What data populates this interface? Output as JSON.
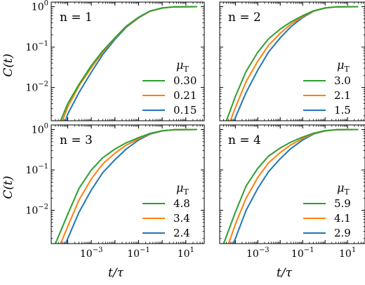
{
  "figure": {
    "ylabel": "C(t)",
    "xlabel": "t/τ"
  },
  "chart_data": [
    {
      "type": "line",
      "panel_label": "n = 1",
      "xscale": "log",
      "yscale": "log",
      "xlim": [
        2e-05,
        60
      ],
      "ylim": [
        0.0015,
        1.3
      ],
      "x_ticks": [
        "10^-3",
        "10^-1",
        "10^1"
      ],
      "y_ticks": [
        "10^0",
        "10^-1",
        "10^-2"
      ],
      "legend_title": "μT",
      "legend_position": "lower-right",
      "series": [
        {
          "name": "0.30",
          "color": "#2ca02c",
          "values": [
            [
              5e-05,
              0.0015
            ],
            [
              0.0001,
              0.004
            ],
            [
              0.0003,
              0.012
            ],
            [
              0.001,
              0.035
            ],
            [
              0.003,
              0.08
            ],
            [
              0.01,
              0.17
            ],
            [
              0.03,
              0.33
            ],
            [
              0.1,
              0.55
            ],
            [
              0.3,
              0.78
            ],
            [
              1,
              0.93
            ],
            [
              3,
              0.99
            ],
            [
              30,
              1.0
            ]
          ]
        },
        {
          "name": "0.21",
          "color": "#ff7f0e",
          "values": [
            [
              6e-05,
              0.0015
            ],
            [
              0.0001,
              0.0033
            ],
            [
              0.0003,
              0.011
            ],
            [
              0.001,
              0.031
            ],
            [
              0.003,
              0.075
            ],
            [
              0.01,
              0.165
            ],
            [
              0.03,
              0.32
            ],
            [
              0.1,
              0.54
            ],
            [
              0.3,
              0.77
            ],
            [
              1,
              0.93
            ],
            [
              3,
              0.99
            ],
            [
              30,
              1.0
            ]
          ]
        },
        {
          "name": "0.15",
          "color": "#1f77b4",
          "values": [
            [
              8e-05,
              0.0015
            ],
            [
              0.0001,
              0.0022
            ],
            [
              0.0003,
              0.0075
            ],
            [
              0.001,
              0.024
            ],
            [
              0.003,
              0.065
            ],
            [
              0.01,
              0.155
            ],
            [
              0.03,
              0.31
            ],
            [
              0.1,
              0.53
            ],
            [
              0.3,
              0.77
            ],
            [
              1,
              0.93
            ],
            [
              3,
              0.99
            ],
            [
              30,
              1.0
            ]
          ]
        }
      ]
    },
    {
      "type": "line",
      "panel_label": "n = 2",
      "xscale": "log",
      "yscale": "log",
      "xlim": [
        2e-05,
        60
      ],
      "ylim": [
        0.0015,
        1.3
      ],
      "x_ticks": [
        "10^-3",
        "10^-1",
        "10^1"
      ],
      "y_ticks": [
        "10^0",
        "10^-1",
        "10^-2"
      ],
      "legend_title": "μT",
      "legend_position": "lower-right",
      "series": [
        {
          "name": "3.0",
          "color": "#2ca02c",
          "values": [
            [
              4e-05,
              0.0015
            ],
            [
              0.0001,
              0.006
            ],
            [
              0.0003,
              0.025
            ],
            [
              0.001,
              0.075
            ],
            [
              0.003,
              0.16
            ],
            [
              0.01,
              0.28
            ],
            [
              0.03,
              0.42
            ],
            [
              0.1,
              0.6
            ],
            [
              0.3,
              0.79
            ],
            [
              1,
              0.93
            ],
            [
              3,
              0.99
            ],
            [
              30,
              1.0
            ]
          ]
        },
        {
          "name": "2.1",
          "color": "#ff7f0e",
          "values": [
            [
              6e-05,
              0.0015
            ],
            [
              0.0001,
              0.0032
            ],
            [
              0.0003,
              0.014
            ],
            [
              0.001,
              0.045
            ],
            [
              0.003,
              0.11
            ],
            [
              0.01,
              0.22
            ],
            [
              0.03,
              0.37
            ],
            [
              0.1,
              0.57
            ],
            [
              0.3,
              0.78
            ],
            [
              1,
              0.93
            ],
            [
              3,
              0.99
            ],
            [
              30,
              1.0
            ]
          ]
        },
        {
          "name": "1.5",
          "color": "#1f77b4",
          "values": [
            [
              9e-05,
              0.0015
            ],
            [
              0.0001,
              0.0018
            ],
            [
              0.0003,
              0.0075
            ],
            [
              0.001,
              0.027
            ],
            [
              0.003,
              0.075
            ],
            [
              0.01,
              0.17
            ],
            [
              0.03,
              0.32
            ],
            [
              0.1,
              0.54
            ],
            [
              0.3,
              0.77
            ],
            [
              1,
              0.93
            ],
            [
              3,
              0.99
            ],
            [
              30,
              1.0
            ]
          ]
        }
      ]
    },
    {
      "type": "line",
      "panel_label": "n = 3",
      "xscale": "log",
      "yscale": "log",
      "xlim": [
        2e-05,
        60
      ],
      "ylim": [
        0.0015,
        1.3
      ],
      "x_ticks": [
        "10^-3",
        "10^-1",
        "10^1"
      ],
      "y_ticks": [
        "10^0",
        "10^-1",
        "10^-2"
      ],
      "legend_title": "μT",
      "legend_position": "lower-right",
      "series": [
        {
          "name": "4.8",
          "color": "#2ca02c",
          "values": [
            [
              3e-05,
              0.0015
            ],
            [
              0.0001,
              0.008
            ],
            [
              0.0003,
              0.035
            ],
            [
              0.001,
              0.1
            ],
            [
              0.003,
              0.2
            ],
            [
              0.01,
              0.33
            ],
            [
              0.03,
              0.47
            ],
            [
              0.1,
              0.63
            ],
            [
              0.3,
              0.8
            ],
            [
              1,
              0.93
            ],
            [
              3,
              0.99
            ],
            [
              30,
              1.0
            ]
          ]
        },
        {
          "name": "3.4",
          "color": "#ff7f0e",
          "values": [
            [
              5e-05,
              0.0015
            ],
            [
              0.0001,
              0.004
            ],
            [
              0.0003,
              0.018
            ],
            [
              0.001,
              0.06
            ],
            [
              0.003,
              0.14
            ],
            [
              0.01,
              0.26
            ],
            [
              0.03,
              0.41
            ],
            [
              0.1,
              0.59
            ],
            [
              0.3,
              0.79
            ],
            [
              1,
              0.93
            ],
            [
              3,
              0.99
            ],
            [
              30,
              1.0
            ]
          ]
        },
        {
          "name": "2.4",
          "color": "#1f77b4",
          "values": [
            [
              8e-05,
              0.0015
            ],
            [
              0.0001,
              0.002
            ],
            [
              0.0003,
              0.009
            ],
            [
              0.001,
              0.032
            ],
            [
              0.003,
              0.085
            ],
            [
              0.01,
              0.18
            ],
            [
              0.03,
              0.33
            ],
            [
              0.1,
              0.55
            ],
            [
              0.3,
              0.77
            ],
            [
              1,
              0.93
            ],
            [
              3,
              0.99
            ],
            [
              30,
              1.0
            ]
          ]
        }
      ]
    },
    {
      "type": "line",
      "panel_label": "n = 4",
      "xscale": "log",
      "yscale": "log",
      "xlim": [
        2e-05,
        60
      ],
      "ylim": [
        0.0015,
        1.3
      ],
      "x_ticks": [
        "10^-3",
        "10^-1",
        "10^1"
      ],
      "y_ticks": [
        "10^0",
        "10^-1",
        "10^-2"
      ],
      "legend_title": "μT",
      "legend_position": "lower-right",
      "series": [
        {
          "name": "5.9",
          "color": "#2ca02c",
          "values": [
            [
              3e-05,
              0.0015
            ],
            [
              0.0001,
              0.009
            ],
            [
              0.0003,
              0.04
            ],
            [
              0.001,
              0.11
            ],
            [
              0.003,
              0.22
            ],
            [
              0.01,
              0.35
            ],
            [
              0.03,
              0.49
            ],
            [
              0.1,
              0.65
            ],
            [
              0.3,
              0.81
            ],
            [
              1,
              0.94
            ],
            [
              3,
              0.99
            ],
            [
              30,
              1.0
            ]
          ]
        },
        {
          "name": "4.1",
          "color": "#ff7f0e",
          "values": [
            [
              5e-05,
              0.0015
            ],
            [
              0.0001,
              0.0045
            ],
            [
              0.0003,
              0.02
            ],
            [
              0.001,
              0.065
            ],
            [
              0.003,
              0.15
            ],
            [
              0.01,
              0.27
            ],
            [
              0.03,
              0.42
            ],
            [
              0.1,
              0.6
            ],
            [
              0.3,
              0.79
            ],
            [
              1,
              0.93
            ],
            [
              3,
              0.99
            ],
            [
              30,
              1.0
            ]
          ]
        },
        {
          "name": "2.9",
          "color": "#1f77b4",
          "values": [
            [
              8e-05,
              0.0015
            ],
            [
              0.0001,
              0.002
            ],
            [
              0.0003,
              0.01
            ],
            [
              0.001,
              0.035
            ],
            [
              0.003,
              0.09
            ],
            [
              0.01,
              0.19
            ],
            [
              0.03,
              0.34
            ],
            [
              0.1,
              0.55
            ],
            [
              0.3,
              0.77
            ],
            [
              1,
              0.93
            ],
            [
              3,
              0.99
            ],
            [
              30,
              1.0
            ]
          ]
        }
      ]
    }
  ]
}
